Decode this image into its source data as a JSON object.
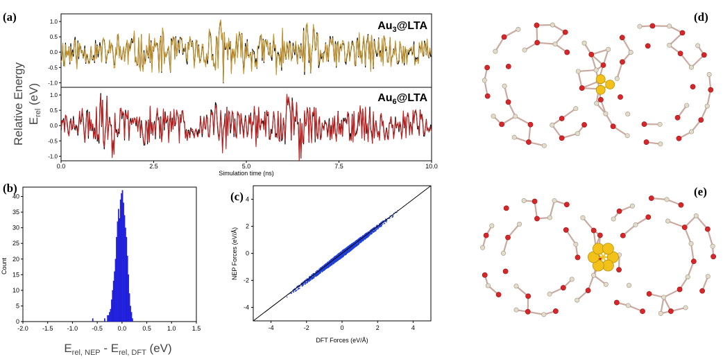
{
  "panel_labels": {
    "a": "(a)",
    "b": "(b)",
    "c": "(c)",
    "d": "(d)",
    "e": "(e)"
  },
  "panel_a": {
    "ylabel_line1": "Relative Energy",
    "ylabel_line2_main": "E",
    "ylabel_line2_sub": "rel",
    "ylabel_line2_unit": " (eV)",
    "xlabel": "Simulation time (ns)",
    "top_tag": {
      "pre": "Au",
      "sub": "3",
      "post": "@LTA"
    },
    "bottom_tag": {
      "pre": "Au",
      "sub": "6",
      "post": "@LTA"
    }
  },
  "panel_b": {
    "xlabel_main": "E",
    "xlabel_sub1": "rel, NEP",
    "xlabel_mid": " - E",
    "xlabel_sub2": "rel, DFT",
    "xlabel_unit": " (eV)",
    "ylabel": "Count"
  },
  "panel_c": {
    "xlabel": "DFT Forces (eV/Å)",
    "ylabel": "NEP Forces (eV/Å)"
  },
  "colors": {
    "au3_nep": "#c8952a",
    "au6_nep": "#c41e1e",
    "dft_line": "#000000",
    "histogram": "#2222ee",
    "scatter": "#1f3fd6",
    "oxygen": "#d7262a",
    "silicon": "#e3dccb",
    "gold": "#f2c21a"
  },
  "chart_data": [
    {
      "type": "line",
      "panel": "a-top",
      "title": "Au3@LTA",
      "xlabel": "Simulation time (ns)",
      "ylabel": "Relative Energy E_rel (eV)",
      "xlim": [
        0,
        10.0
      ],
      "ylim": [
        -1.15,
        1.25
      ],
      "xticks": [
        "0.0",
        "2.5",
        "5.0",
        "7.5",
        "10.0"
      ],
      "yticks": [
        "-1.0",
        "-0.5",
        "0.0",
        "0.5",
        "1.0"
      ],
      "series": [],
      "x": [
        0,
        0.5,
        1,
        1.5,
        2,
        2.5,
        3,
        3.5,
        4,
        4.5,
        5,
        5.5,
        6,
        6.5,
        7,
        7.5,
        8,
        8.5,
        9,
        9.5,
        10
      ],
      "y_envelope": [
        0.3,
        0.1,
        -0.2,
        0.5,
        -0.4,
        0.6,
        -0.3,
        0.2,
        1.2,
        -0.5,
        0.4,
        -0.6,
        0.1,
        0.9,
        -0.3,
        0.3,
        -0.4,
        0.5,
        -0.2,
        0.1,
        0.0
      ]
    },
    {
      "type": "line",
      "panel": "a-bottom",
      "title": "Au6@LTA",
      "xlabel": "Simulation time (ns)",
      "ylabel": "Relative Energy E_rel (eV)",
      "xlim": [
        0,
        10.0
      ],
      "ylim": [
        -1.15,
        1.25
      ],
      "xticks": [
        "0.0",
        "2.5",
        "5.0",
        "7.5",
        "10.0"
      ],
      "yticks": [
        "-1.0",
        "-0.5",
        "0.0",
        "0.5",
        "1.0"
      ],
      "series": [],
      "x": [
        0,
        0.5,
        1,
        1.5,
        2,
        2.5,
        3,
        3.5,
        4,
        4.5,
        5,
        5.5,
        6,
        6.5,
        7,
        7.5,
        8,
        8.5,
        9,
        9.5,
        10
      ],
      "y_envelope": [
        0.0,
        0.4,
        1.3,
        -0.4,
        0.5,
        -0.3,
        0.3,
        0.1,
        -0.8,
        0.2,
        -0.5,
        0.4,
        1.3,
        -0.6,
        0.3,
        0.2,
        -0.5,
        0.4,
        0.1,
        -0.3,
        0.2
      ]
    },
    {
      "type": "bar",
      "panel": "b",
      "xlabel": "E_rel, NEP - E_rel, DFT (eV)",
      "ylabel": "Count",
      "xlim": [
        -2.0,
        1.5
      ],
      "ylim": [
        0,
        43
      ],
      "xticks": [
        "-2.0",
        "-1.5",
        "-1.0",
        "-0.5",
        "0.0",
        "0.5",
        "1.0",
        "1.5"
      ],
      "yticks": [
        "0",
        "5",
        "10",
        "15",
        "20",
        "25",
        "30",
        "35",
        "40"
      ],
      "bin_width": 0.02,
      "bins": [
        {
          "x": -0.6,
          "v": 1
        },
        {
          "x": -0.36,
          "v": 1
        },
        {
          "x": -0.3,
          "v": 2
        },
        {
          "x": -0.28,
          "v": 2
        },
        {
          "x": -0.26,
          "v": 3
        },
        {
          "x": -0.24,
          "v": 4
        },
        {
          "x": -0.22,
          "v": 7
        },
        {
          "x": -0.2,
          "v": 10
        },
        {
          "x": -0.18,
          "v": 13
        },
        {
          "x": -0.16,
          "v": 16
        },
        {
          "x": -0.14,
          "v": 20
        },
        {
          "x": -0.12,
          "v": 27
        },
        {
          "x": -0.1,
          "v": 32
        },
        {
          "x": -0.08,
          "v": 36
        },
        {
          "x": -0.06,
          "v": 33
        },
        {
          "x": -0.04,
          "v": 39
        },
        {
          "x": -0.02,
          "v": 41
        },
        {
          "x": 0.0,
          "v": 42
        },
        {
          "x": 0.02,
          "v": 38
        },
        {
          "x": 0.04,
          "v": 34
        },
        {
          "x": 0.06,
          "v": 30
        },
        {
          "x": 0.08,
          "v": 27
        },
        {
          "x": 0.1,
          "v": 21
        },
        {
          "x": 0.12,
          "v": 15
        },
        {
          "x": 0.14,
          "v": 9
        },
        {
          "x": 0.16,
          "v": 5
        },
        {
          "x": 0.18,
          "v": 3
        },
        {
          "x": 0.2,
          "v": 1
        }
      ]
    },
    {
      "type": "scatter",
      "panel": "c",
      "xlabel": "DFT Forces (eV/Å)",
      "ylabel": "NEP Forces (eV/Å)",
      "xlim": [
        -5,
        5
      ],
      "ylim": [
        -5,
        5
      ],
      "xticks": [
        "-4",
        "-2",
        "0",
        "2",
        "4"
      ],
      "yticks": [
        "-4",
        "-2",
        "0",
        "2",
        "4"
      ],
      "reference_line": "y = x",
      "point_spread": 0.18,
      "x_range_of_points": [
        -3.6,
        3.3
      ]
    }
  ]
}
